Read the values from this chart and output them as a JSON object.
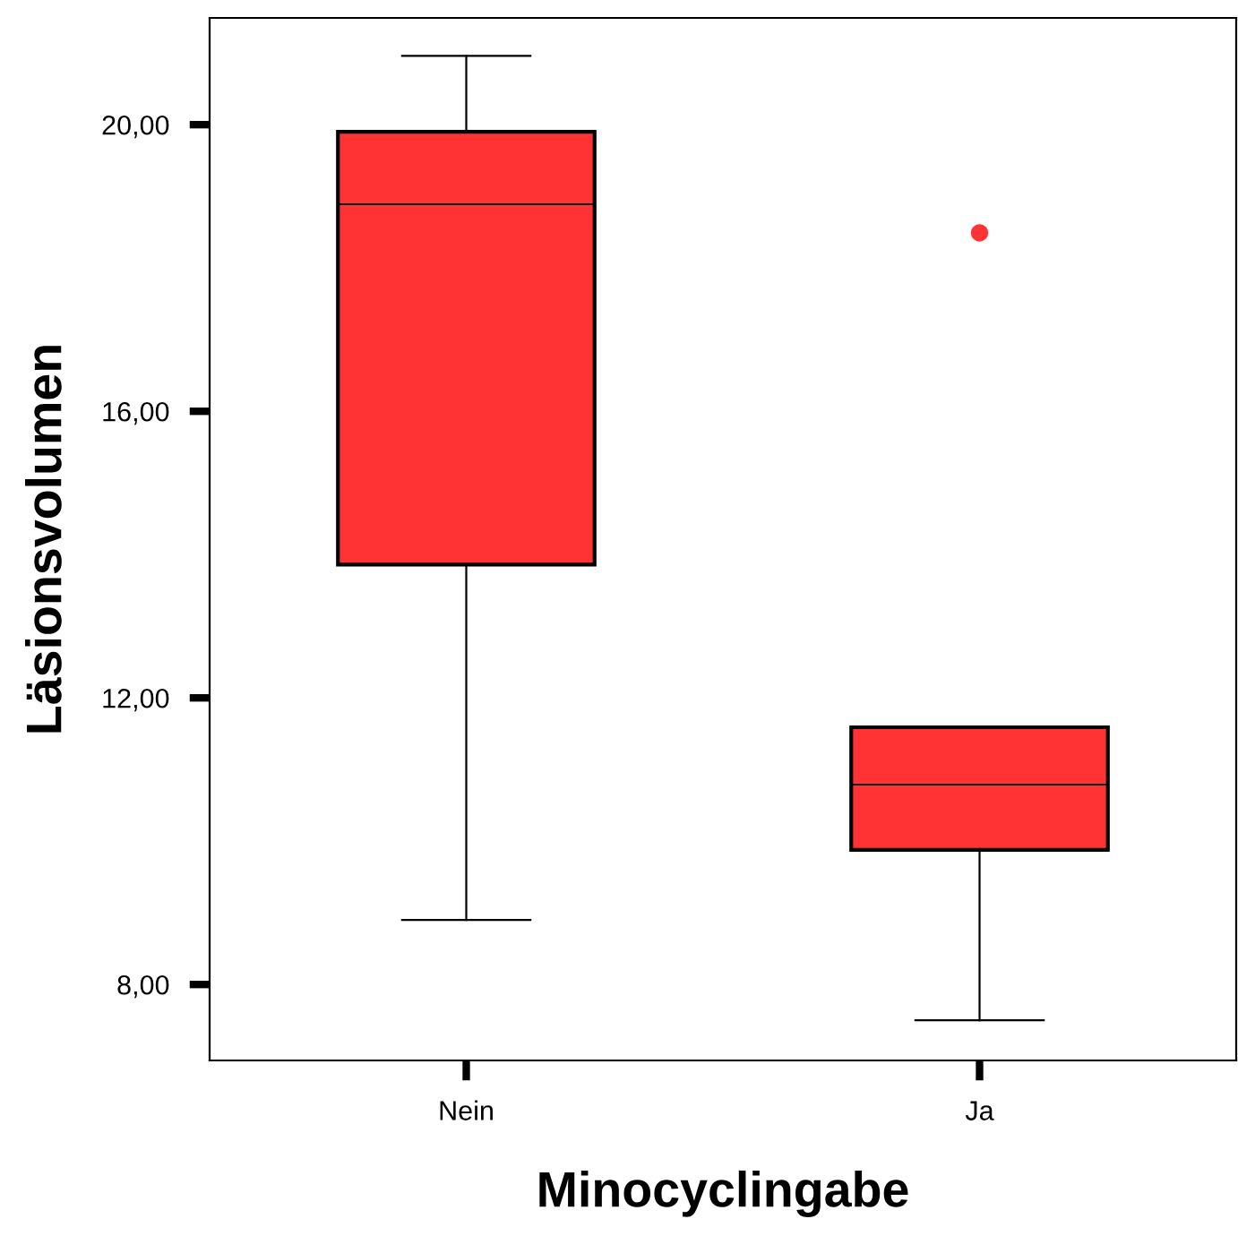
{
  "chart_data": {
    "type": "box",
    "xlabel": "Minocyclingabe",
    "ylabel": "Läsionsvolumen",
    "categories": [
      "Nein",
      "Ja"
    ],
    "boxes": [
      {
        "low": 8.9,
        "q1": 13.86,
        "median": 18.89,
        "q3": 19.9,
        "high": 20.96
      },
      {
        "low": 7.5,
        "q1": 9.88,
        "median": 10.79,
        "q3": 11.59,
        "high": 11.59,
        "outliers": [
          18.49
        ]
      }
    ],
    "color": "#ff3333",
    "ylim": [
      6.94,
      21.49
    ],
    "yticks": [
      {
        "value": 8,
        "label": "8,00"
      },
      {
        "value": 12,
        "label": "12,00"
      },
      {
        "value": 16,
        "label": "16,00"
      },
      {
        "value": 20,
        "label": "20,00"
      }
    ],
    "grid": false
  }
}
